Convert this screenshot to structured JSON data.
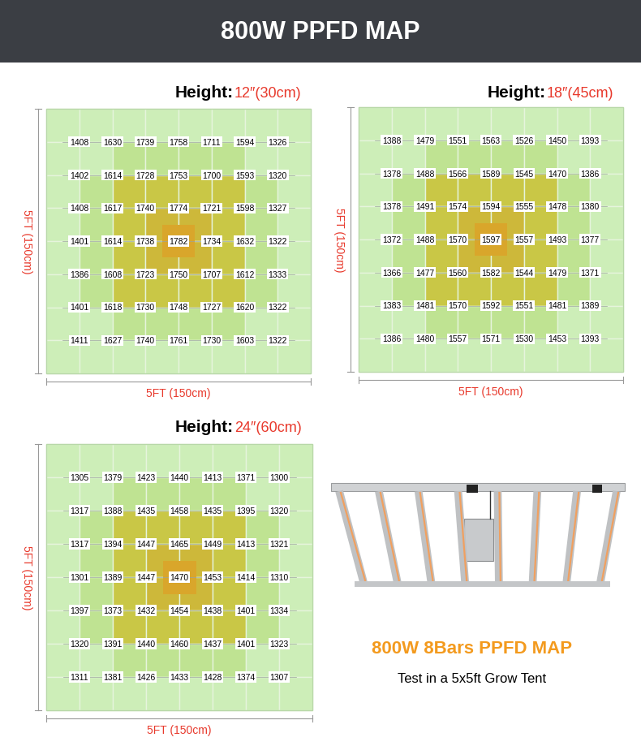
{
  "title": "800W PPFD MAP",
  "chart_data": [
    {
      "type": "heatmap",
      "title": "Height:",
      "subtitle": "12″(30cm)",
      "x_label": "5FT (150cm)",
      "y_label": "5FT (150cm)",
      "data_labels": true,
      "cells": [
        [
          1408,
          1630,
          1739,
          1758,
          1711,
          1594,
          1326
        ],
        [
          1402,
          1614,
          1728,
          1753,
          1700,
          1593,
          1320
        ],
        [
          1408,
          1617,
          1740,
          1774,
          1721,
          1598,
          1327
        ],
        [
          1401,
          1614,
          1738,
          1782,
          1734,
          1632,
          1322
        ],
        [
          1386,
          1608,
          1723,
          1750,
          1707,
          1612,
          1333
        ],
        [
          1401,
          1618,
          1730,
          1748,
          1727,
          1620,
          1322
        ],
        [
          1411,
          1627,
          1740,
          1761,
          1730,
          1603,
          1322
        ]
      ]
    },
    {
      "type": "heatmap",
      "title": "Height:",
      "subtitle": "18″(45cm)",
      "x_label": "5FT (150cm)",
      "y_label": "5FT (150cm)",
      "data_labels": true,
      "cells": [
        [
          1388,
          1479,
          1551,
          1563,
          1526,
          1450,
          1393
        ],
        [
          1378,
          1488,
          1566,
          1589,
          1545,
          1470,
          1386
        ],
        [
          1378,
          1491,
          1574,
          1594,
          1555,
          1478,
          1380
        ],
        [
          1372,
          1488,
          1570,
          1597,
          1557,
          1493,
          1377
        ],
        [
          1366,
          1477,
          1560,
          1582,
          1544,
          1479,
          1371
        ],
        [
          1383,
          1481,
          1570,
          1592,
          1551,
          1481,
          1389
        ],
        [
          1386,
          1480,
          1557,
          1571,
          1530,
          1453,
          1393
        ]
      ]
    },
    {
      "type": "heatmap",
      "title": "Height:",
      "subtitle": "24″(60cm)",
      "x_label": "5FT (150cm)",
      "y_label": "5FT (150cm)",
      "data_labels": true,
      "cells": [
        [
          1305,
          1379,
          1423,
          1440,
          1413,
          1371,
          1300
        ],
        [
          1317,
          1388,
          1435,
          1458,
          1435,
          1395,
          1320
        ],
        [
          1317,
          1394,
          1447,
          1465,
          1449,
          1413,
          1321
        ],
        [
          1301,
          1389,
          1447,
          1470,
          1453,
          1414,
          1310
        ],
        [
          1397,
          1373,
          1432,
          1454,
          1438,
          1401,
          1334
        ],
        [
          1320,
          1391,
          1440,
          1460,
          1437,
          1401,
          1323
        ],
        [
          1311,
          1381,
          1426,
          1433,
          1428,
          1374,
          1307
        ]
      ]
    }
  ],
  "annotations": [
    "800W 8Bars PPFD MAP",
    "Test in a 5x5ft Grow Tent"
  ]
}
